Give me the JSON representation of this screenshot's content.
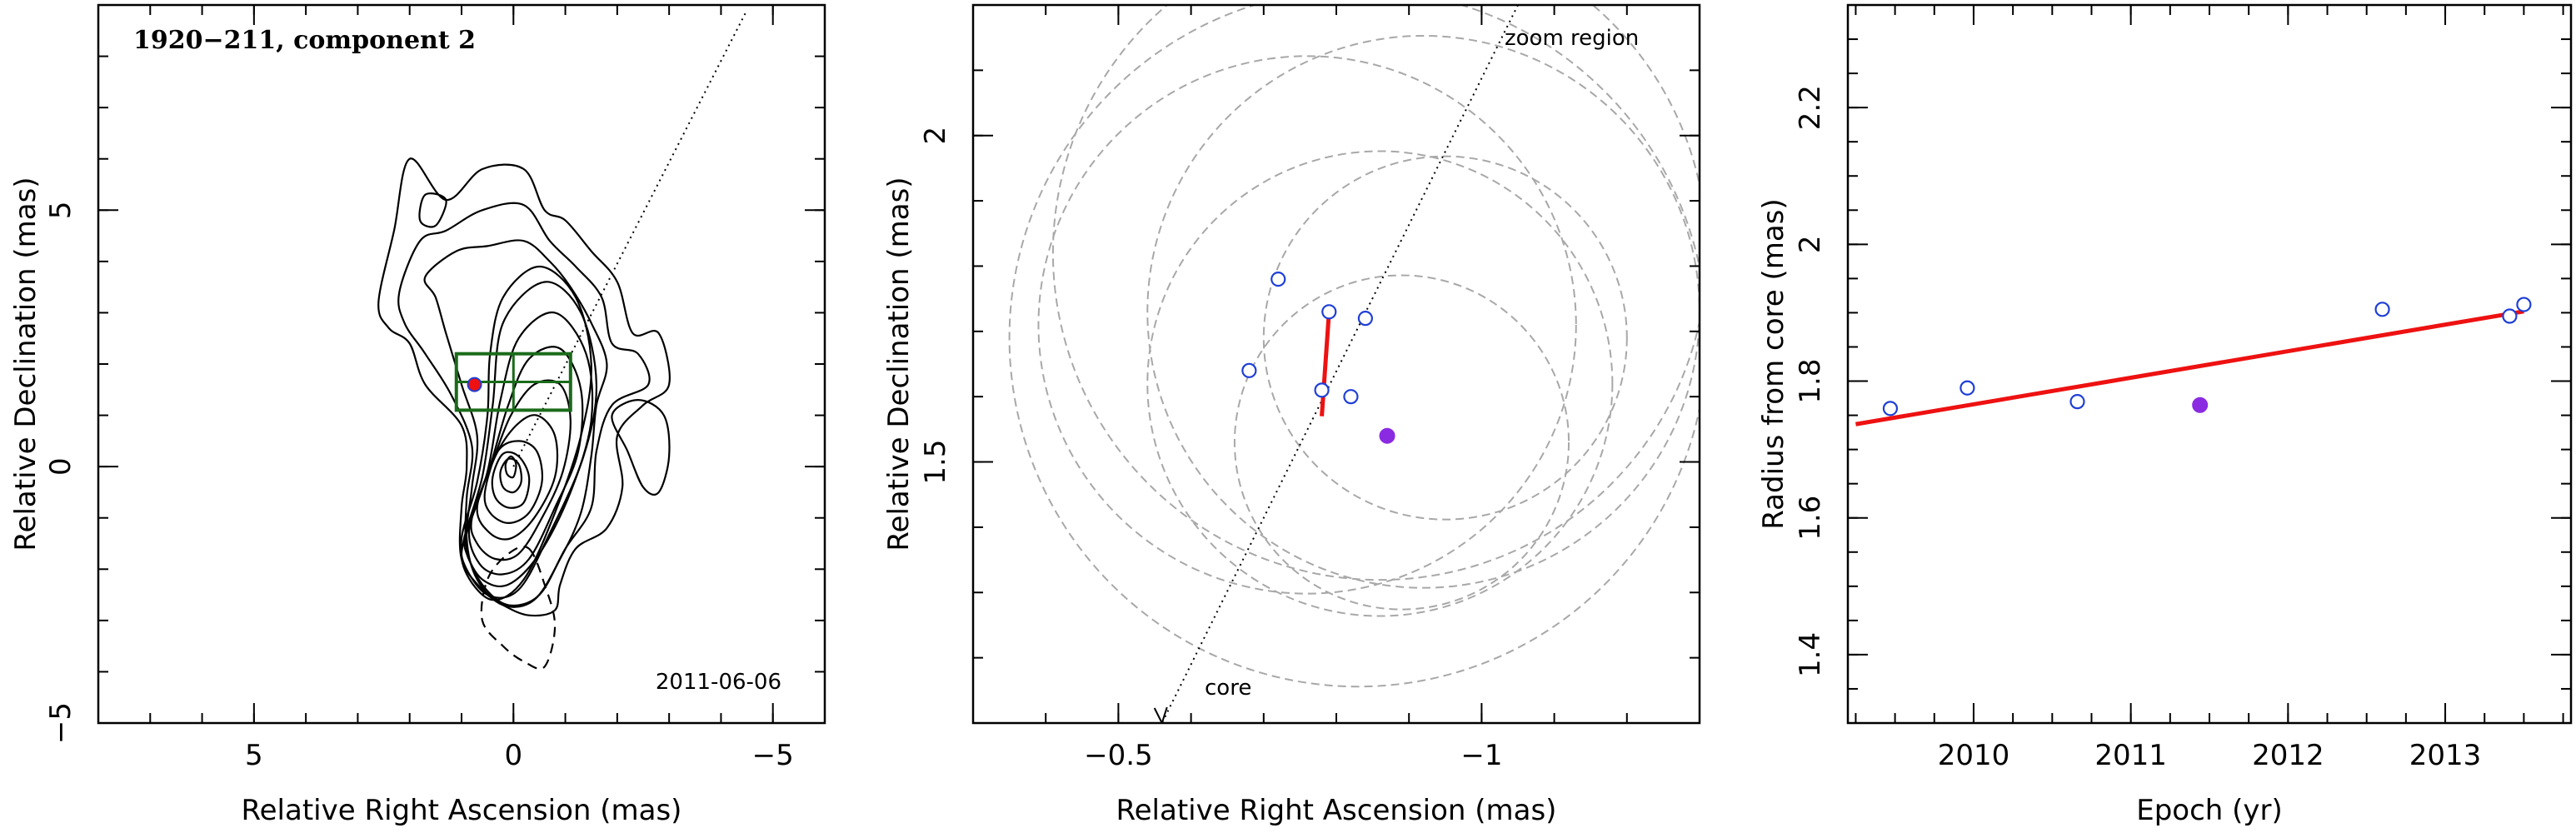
{
  "colors": {
    "axis": "#000000",
    "contour": "#000000",
    "zoom_box": "#1a6b1a",
    "circle": "#a8a8a8",
    "open_marker": "#1f3fd6",
    "filled_marker": "#8a2be2",
    "fit_line": "#ee1111"
  },
  "chart_data": [
    {
      "type": "contour",
      "title": "1920−211, component 2",
      "date_label": "2011-06-06",
      "xlabel": "Relative Right Ascension (mas)",
      "ylabel": "Relative Declination (mas)",
      "xlim": [
        8,
        -6
      ],
      "ylim": [
        -5,
        9
      ],
      "x_ticks": [
        5,
        0,
        -5
      ],
      "x_tick_labels": [
        "5",
        "0",
        "−5"
      ],
      "y_ticks": [
        -5,
        0,
        5
      ],
      "y_tick_labels": [
        "−5",
        "0",
        "5"
      ],
      "core_direction_line": {
        "from": [
          0,
          0
        ],
        "to": [
          -4.5,
          8.9
        ]
      },
      "zoom_box": {
        "x": [
          1.1,
          -1.1
        ],
        "y": [
          1.1,
          2.2
        ]
      },
      "component_marker": {
        "x": 0.75,
        "y": 1.6
      },
      "levels": [
        [
          [
            1.0,
            -1.4
          ],
          [
            0.7,
            -0.3
          ],
          [
            0.5,
            1.0
          ],
          [
            0.45,
            2.2
          ],
          [
            0.2,
            3.3
          ],
          [
            -0.5,
            3.9
          ],
          [
            -1.2,
            3.3
          ],
          [
            -1.5,
            2.0
          ],
          [
            -1.3,
            0.6
          ],
          [
            -0.8,
            -0.9
          ],
          [
            -0.2,
            -2.2
          ],
          [
            0.4,
            -2.6
          ],
          [
            0.9,
            -2.1
          ]
        ],
        [
          [
            0.95,
            -1.4
          ],
          [
            0.6,
            -0.2
          ],
          [
            0.4,
            1.2
          ],
          [
            0.2,
            2.8
          ],
          [
            -0.6,
            3.6
          ],
          [
            -1.3,
            3.0
          ],
          [
            -1.6,
            1.6
          ],
          [
            -1.35,
            0.2
          ],
          [
            -0.7,
            -1.3
          ],
          [
            -0.1,
            -2.4
          ],
          [
            0.5,
            -2.5
          ],
          [
            0.95,
            -1.9
          ]
        ],
        [
          [
            0.9,
            -1.3
          ],
          [
            0.5,
            -0.1
          ],
          [
            0.25,
            1.3
          ],
          [
            -0.1,
            2.5
          ],
          [
            -0.8,
            3.0
          ],
          [
            -1.4,
            2.2
          ],
          [
            -1.5,
            0.9
          ],
          [
            -1.1,
            -0.5
          ],
          [
            -0.5,
            -1.7
          ],
          [
            0.1,
            -2.3
          ],
          [
            0.6,
            -2.2
          ],
          [
            0.9,
            -1.7
          ]
        ],
        [
          [
            0.85,
            -1.2
          ],
          [
            0.45,
            0.0
          ],
          [
            0.1,
            1.2
          ],
          [
            -0.3,
            2.1
          ],
          [
            -0.9,
            2.3
          ],
          [
            -1.3,
            1.5
          ],
          [
            -1.25,
            0.3
          ],
          [
            -0.8,
            -0.8
          ],
          [
            -0.3,
            -1.8
          ],
          [
            0.2,
            -2.1
          ],
          [
            0.65,
            -1.9
          ]
        ],
        [
          [
            0.8,
            -1.0
          ],
          [
            0.4,
            0.1
          ],
          [
            0.05,
            1.0
          ],
          [
            -0.4,
            1.6
          ],
          [
            -0.9,
            1.6
          ],
          [
            -1.1,
            0.9
          ],
          [
            -0.95,
            -0.1
          ],
          [
            -0.55,
            -1.0
          ],
          [
            -0.1,
            -1.7
          ],
          [
            0.35,
            -1.8
          ],
          [
            0.7,
            -1.5
          ]
        ],
        [
          [
            0.7,
            -0.8
          ],
          [
            0.35,
            0.2
          ],
          [
            -0.05,
            0.8
          ],
          [
            -0.45,
            1.0
          ],
          [
            -0.8,
            0.6
          ],
          [
            -0.8,
            -0.2
          ],
          [
            -0.4,
            -1.0
          ],
          [
            0.05,
            -1.4
          ],
          [
            0.45,
            -1.3
          ]
        ],
        [
          [
            0.55,
            -0.5
          ],
          [
            0.3,
            0.3
          ],
          [
            -0.1,
            0.5
          ],
          [
            -0.45,
            0.3
          ],
          [
            -0.55,
            -0.3
          ],
          [
            -0.3,
            -0.9
          ],
          [
            0.1,
            -1.1
          ],
          [
            0.45,
            -0.9
          ]
        ],
        [
          [
            0.4,
            -0.2
          ],
          [
            0.2,
            0.25
          ],
          [
            -0.1,
            0.2
          ],
          [
            -0.3,
            -0.2
          ],
          [
            -0.2,
            -0.7
          ],
          [
            0.1,
            -0.8
          ],
          [
            0.35,
            -0.6
          ]
        ],
        [
          [
            0.25,
            -0.1
          ],
          [
            0.1,
            0.15
          ],
          [
            -0.1,
            0.05
          ],
          [
            -0.15,
            -0.3
          ],
          [
            0.0,
            -0.5
          ],
          [
            0.2,
            -0.4
          ]
        ],
        [
          [
            0.15,
            0.05
          ],
          [
            0.05,
            0.2
          ],
          [
            -0.05,
            0.05
          ],
          [
            0.0,
            -0.2
          ],
          [
            0.12,
            -0.15
          ]
        ],
        [
          [
            2.6,
            3.2
          ],
          [
            2.3,
            4.6
          ],
          [
            2.0,
            6.0
          ],
          [
            1.3,
            5.2
          ],
          [
            0.6,
            5.8
          ],
          [
            -0.2,
            5.8
          ],
          [
            -0.6,
            5.0
          ],
          [
            -1.0,
            4.8
          ],
          [
            -1.5,
            4.2
          ],
          [
            -2.0,
            3.6
          ],
          [
            -2.3,
            2.6
          ],
          [
            -2.8,
            2.6
          ],
          [
            -3.0,
            1.6
          ],
          [
            -2.5,
            1.2
          ],
          [
            -2.0,
            0.6
          ],
          [
            -2.1,
            -0.4
          ],
          [
            -1.8,
            -1.2
          ],
          [
            -1.2,
            -1.6
          ],
          [
            -0.9,
            -2.3
          ],
          [
            -0.8,
            -2.8
          ],
          [
            -0.3,
            -2.9
          ],
          [
            0.2,
            -2.7
          ],
          [
            0.6,
            -2.4
          ],
          [
            1.0,
            -1.8
          ],
          [
            1.0,
            -0.8
          ],
          [
            0.9,
            0.0
          ],
          [
            1.0,
            0.8
          ],
          [
            1.7,
            1.6
          ],
          [
            2.0,
            2.4
          ],
          [
            2.4,
            2.7
          ]
        ],
        [
          [
            2.2,
            3.4
          ],
          [
            1.8,
            4.4
          ],
          [
            1.3,
            4.6
          ],
          [
            0.6,
            5.0
          ],
          [
            -0.2,
            5.1
          ],
          [
            -0.7,
            4.4
          ],
          [
            -1.2,
            3.9
          ],
          [
            -1.7,
            3.3
          ],
          [
            -1.9,
            2.4
          ],
          [
            -2.4,
            2.2
          ],
          [
            -2.6,
            1.6
          ],
          [
            -1.9,
            1.2
          ],
          [
            -1.6,
            0.3
          ],
          [
            -1.5,
            -0.8
          ],
          [
            -1.0,
            -1.6
          ],
          [
            -0.5,
            -2.5
          ],
          [
            0.1,
            -2.7
          ],
          [
            0.6,
            -2.3
          ],
          [
            0.9,
            -1.6
          ],
          [
            0.9,
            -0.6
          ],
          [
            0.8,
            0.4
          ],
          [
            1.2,
            1.4
          ],
          [
            1.7,
            2.2
          ],
          [
            2.1,
            2.8
          ]
        ],
        [
          [
            1.7,
            3.7
          ],
          [
            1.1,
            4.2
          ],
          [
            0.5,
            4.3
          ],
          [
            -0.2,
            4.4
          ],
          [
            -0.7,
            4.0
          ],
          [
            -1.1,
            3.5
          ],
          [
            -1.5,
            2.8
          ],
          [
            -1.8,
            2.0
          ],
          [
            -1.6,
            1.2
          ],
          [
            -1.5,
            0.2
          ],
          [
            -1.3,
            -0.9
          ],
          [
            -0.9,
            -1.8
          ],
          [
            -0.4,
            -2.6
          ],
          [
            0.2,
            -2.7
          ],
          [
            0.7,
            -2.2
          ],
          [
            0.9,
            -1.4
          ],
          [
            0.8,
            -0.4
          ],
          [
            0.7,
            0.6
          ],
          [
            1.0,
            1.6
          ],
          [
            1.3,
            2.6
          ],
          [
            1.5,
            3.3
          ]
        ]
      ],
      "small_contours": [
        [
          [
            1.5,
            4.7
          ],
          [
            1.3,
            5.2
          ],
          [
            1.7,
            5.3
          ],
          [
            1.8,
            4.8
          ]
        ],
        [
          [
            -1.9,
            1.0
          ],
          [
            -2.2,
            0.3
          ],
          [
            -2.5,
            -0.4
          ],
          [
            -2.8,
            -0.5
          ],
          [
            -3.0,
            0.2
          ],
          [
            -2.9,
            1.0
          ],
          [
            -2.4,
            1.3
          ]
        ]
      ],
      "negative_contour": [
        [
          -0.3,
          -1.6
        ],
        [
          -0.6,
          -2.3
        ],
        [
          -0.8,
          -3.1
        ],
        [
          -0.6,
          -3.9
        ],
        [
          -0.2,
          -3.8
        ],
        [
          0.2,
          -3.5
        ],
        [
          0.6,
          -3.0
        ],
        [
          0.5,
          -2.2
        ],
        [
          0.1,
          -1.7
        ]
      ]
    },
    {
      "type": "scatter",
      "note_top": "zoom region",
      "note_bottom": "core",
      "xlabel": "Relative Right Ascension (mas)",
      "ylabel": "Relative Declination (mas)",
      "xlim": [
        -0.3,
        -1.3
      ],
      "ylim": [
        1.1,
        2.2
      ],
      "x_ticks": [
        -0.5,
        -1
      ],
      "x_tick_labels": [
        "−0.5",
        "−1"
      ],
      "y_ticks": [
        1.5,
        2
      ],
      "y_tick_labels": [
        "1.5",
        "2"
      ],
      "direction_line": {
        "from": [
          -1.05,
          2.2
        ],
        "to": [
          -0.56,
          1.1
        ]
      },
      "open_points": [
        {
          "x": -0.72,
          "y": 1.78
        },
        {
          "x": -0.68,
          "y": 1.64
        },
        {
          "x": -0.79,
          "y": 1.73
        },
        {
          "x": -0.84,
          "y": 1.72
        },
        {
          "x": -0.78,
          "y": 1.61
        },
        {
          "x": -0.82,
          "y": 1.6
        }
      ],
      "filled_points": [
        {
          "x": -0.87,
          "y": 1.54
        }
      ],
      "fit_line": {
        "from": [
          -0.78,
          1.57
        ],
        "to": [
          -0.79,
          1.73
        ]
      },
      "circles": [
        {
          "cx": -0.86,
          "cy": 1.82,
          "r": 0.45
        },
        {
          "cx": -0.83,
          "cy": 1.69,
          "r": 0.48
        },
        {
          "cx": -0.92,
          "cy": 1.73,
          "r": 0.38
        },
        {
          "cx": -0.95,
          "cy": 1.69,
          "r": 0.25
        },
        {
          "cx": -0.89,
          "cy": 1.53,
          "r": 0.23
        },
        {
          "cx": -0.86,
          "cy": 1.62,
          "r": 0.32
        },
        {
          "cx": -0.76,
          "cy": 1.71,
          "r": 0.37
        }
      ]
    },
    {
      "type": "scatter",
      "xlabel": "Epoch (yr)",
      "ylabel": "Radius from core (mas)",
      "xlim": [
        2009.2,
        2013.8
      ],
      "ylim": [
        1.3,
        2.35
      ],
      "x_ticks": [
        2010,
        2011,
        2012,
        2013
      ],
      "x_tick_labels": [
        "2010",
        "2011",
        "2012",
        "2013"
      ],
      "y_ticks": [
        1.4,
        1.6,
        1.8,
        2,
        2.2
      ],
      "y_tick_labels": [
        "1.4",
        "1.6",
        "1.8",
        "2",
        "2.2"
      ],
      "open_points": [
        {
          "x": 2009.47,
          "y": 1.76
        },
        {
          "x": 2009.96,
          "y": 1.79
        },
        {
          "x": 2010.66,
          "y": 1.77
        },
        {
          "x": 2012.6,
          "y": 1.905
        },
        {
          "x": 2013.41,
          "y": 1.895
        },
        {
          "x": 2013.5,
          "y": 1.912
        }
      ],
      "filled_points": [
        {
          "x": 2011.44,
          "y": 1.765
        }
      ],
      "fit_line": {
        "from": [
          2009.25,
          1.737
        ],
        "to": [
          2013.5,
          1.902
        ]
      }
    }
  ]
}
